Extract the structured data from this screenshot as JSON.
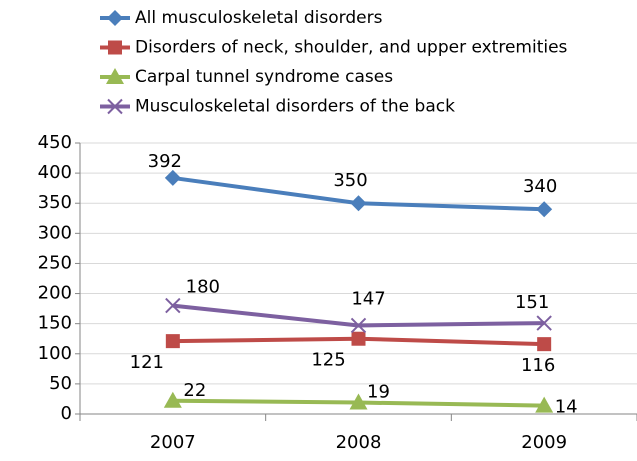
{
  "chart_data": {
    "type": "line",
    "categories": [
      "2007",
      "2008",
      "2009"
    ],
    "series": [
      {
        "name": "All musculoskeletal disorders",
        "color": "#4a7ebb",
        "marker": "diamond",
        "values": [
          392,
          350,
          340
        ]
      },
      {
        "name": "Disorders of neck, shoulder, and upper extremities",
        "color": "#be4b48",
        "marker": "square",
        "values": [
          121,
          125,
          116
        ]
      },
      {
        "name": "Carpal tunnel syndrome cases",
        "color": "#98b954",
        "marker": "triangle",
        "values": [
          22,
          19,
          14
        ]
      },
      {
        "name": "Musculoskeletal disorders of the back",
        "color": "#7d60a0",
        "marker": "x",
        "values": [
          180,
          147,
          151
        ]
      }
    ],
    "ylim": [
      0,
      450
    ],
    "yticks": [
      0,
      50,
      100,
      150,
      200,
      250,
      300,
      350,
      400,
      450
    ],
    "grid": true
  }
}
